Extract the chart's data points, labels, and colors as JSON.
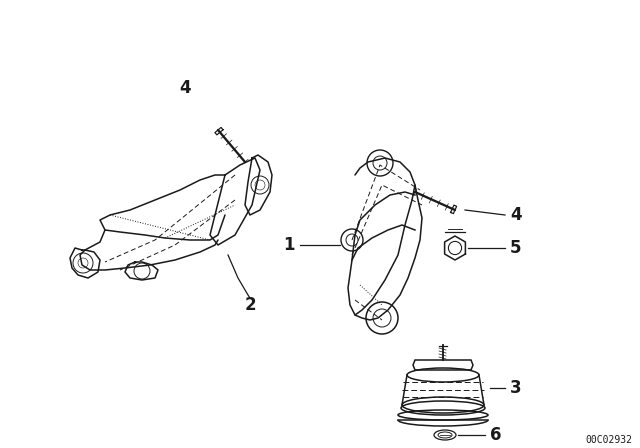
{
  "background_color": "#ffffff",
  "line_color": "#1a1a1a",
  "fig_width": 6.4,
  "fig_height": 4.48,
  "dpi": 100,
  "watermark": "00C02932",
  "label_fontsize": 12,
  "label_fontweight": "bold"
}
